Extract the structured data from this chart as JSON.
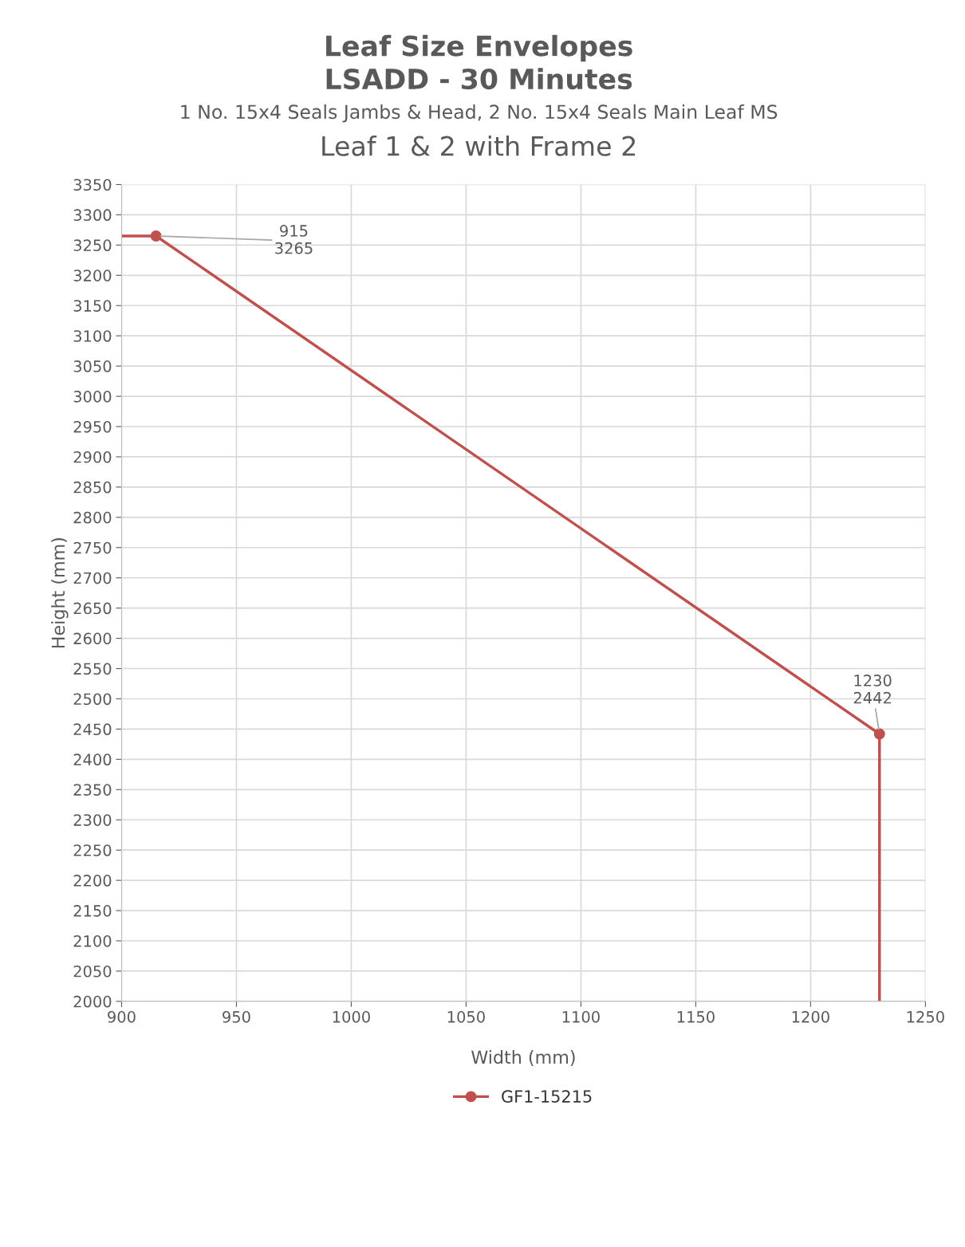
{
  "chart_data": {
    "type": "line",
    "title": "Leaf Size Envelopes\nLSADD - 30 Minutes",
    "subtitle": "1 No. 15x4 Seals Jambs & Head, 2 No. 15x4 Seals Main Leaf MS",
    "annotations": [
      "Leaf 1 & 2 with Frame 2"
    ],
    "xlabel": "Width (mm)",
    "ylabel": "Height (mm)",
    "x": [
      900,
      915,
      1230,
      1230
    ],
    "series": [
      {
        "name": "GF1-15215",
        "color": "#c0504d",
        "values": [
          3265,
          3265,
          2442,
          2000
        ],
        "value_labels": [
          null,
          "915\n3265",
          "1230\n2442",
          null
        ]
      }
    ],
    "xlim": [
      900,
      1250
    ],
    "xticks": [
      900,
      950,
      1000,
      1050,
      1100,
      1150,
      1200,
      1250
    ],
    "ylim": [
      2000,
      3350
    ],
    "yticks": [
      2000,
      2050,
      2100,
      2150,
      2200,
      2250,
      2300,
      2350,
      2400,
      2450,
      2500,
      2550,
      2600,
      2650,
      2700,
      2750,
      2800,
      2850,
      2900,
      2950,
      3000,
      3050,
      3100,
      3150,
      3200,
      3250,
      3300,
      3350
    ],
    "grid": true,
    "legend": "bottom",
    "marker": "circle",
    "line_style": "solid"
  }
}
